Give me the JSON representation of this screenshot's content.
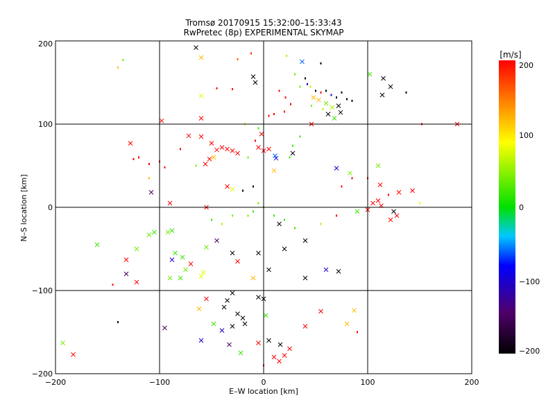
{
  "chart_data": {
    "type": "scatter",
    "title": "Tromsø 20170915 15:32:00–15:33:43",
    "subtitle": "RwPretec (8p) EXPERIMENTAL SKYMAP",
    "xlabel": "E–W location [km]",
    "ylabel": "N–S location [km]",
    "xlim": [
      -200,
      200
    ],
    "ylim": [
      -200,
      200
    ],
    "xticks": [
      "−200",
      "−100",
      "0",
      "100",
      "200"
    ],
    "yticks": [
      "−200",
      "−100",
      "0",
      "100",
      "200"
    ],
    "grid": true,
    "colorbar": {
      "label": "[m/s]",
      "range": [
        -200,
        200
      ],
      "ticks": [
        "200",
        "100",
        "0",
        "−100",
        "−200"
      ],
      "colormap": "black-purple-blue-cyan-green-yellow-red"
    },
    "points": [
      {
        "x": -65,
        "y": 192,
        "v": -200,
        "m": "x"
      },
      {
        "x": -60,
        "y": 180,
        "v": 120,
        "m": "x"
      },
      {
        "x": -140,
        "y": 168,
        "v": 120,
        "m": "d"
      },
      {
        "x": -135,
        "y": 177,
        "v": 40,
        "m": "d"
      },
      {
        "x": -25,
        "y": 178,
        "v": 160,
        "m": "d"
      },
      {
        "x": -12,
        "y": 185,
        "v": 180,
        "m": "d"
      },
      {
        "x": 22,
        "y": 182,
        "v": 60,
        "m": "d"
      },
      {
        "x": 37,
        "y": 175,
        "v": -60,
        "m": "x"
      },
      {
        "x": 55,
        "y": 173,
        "v": -200,
        "m": "d"
      },
      {
        "x": -10,
        "y": 157,
        "v": -200,
        "m": "x"
      },
      {
        "x": -8,
        "y": 150,
        "v": -200,
        "m": "x"
      },
      {
        "x": 102,
        "y": 160,
        "v": 20,
        "m": "x"
      },
      {
        "x": 115,
        "y": 155,
        "v": -200,
        "m": "x"
      },
      {
        "x": 122,
        "y": 145,
        "v": -200,
        "m": "x"
      },
      {
        "x": 114,
        "y": 135,
        "v": -200,
        "m": "x"
      },
      {
        "x": 137,
        "y": 138,
        "v": -200,
        "m": "d"
      },
      {
        "x": -60,
        "y": 134,
        "v": 80,
        "m": "x"
      },
      {
        "x": -60,
        "y": 107,
        "v": 200,
        "m": "x"
      },
      {
        "x": -98,
        "y": 104,
        "v": 200,
        "m": "x"
      },
      {
        "x": -128,
        "y": 77,
        "v": 200,
        "m": "x"
      },
      {
        "x": -45,
        "y": 143,
        "v": 200,
        "m": "d"
      },
      {
        "x": -30,
        "y": 142,
        "v": 200,
        "m": "d"
      },
      {
        "x": 15,
        "y": 140,
        "v": 200,
        "m": "d"
      },
      {
        "x": 21,
        "y": 132,
        "v": 200,
        "m": "d"
      },
      {
        "x": 26,
        "y": 124,
        "v": 200,
        "m": "d"
      },
      {
        "x": 20,
        "y": 115,
        "v": 200,
        "m": "d"
      },
      {
        "x": 10,
        "y": 112,
        "v": 200,
        "m": "d"
      },
      {
        "x": 5,
        "y": 110,
        "v": 200,
        "m": "d"
      },
      {
        "x": 40,
        "y": 155,
        "v": -200,
        "m": "d"
      },
      {
        "x": 42,
        "y": 148,
        "v": -100,
        "m": "d"
      },
      {
        "x": 45,
        "y": 145,
        "v": 60,
        "m": "d"
      },
      {
        "x": 50,
        "y": 140,
        "v": -200,
        "m": "d"
      },
      {
        "x": 55,
        "y": 138,
        "v": 200,
        "m": "d"
      },
      {
        "x": 60,
        "y": 140,
        "v": -200,
        "m": "d"
      },
      {
        "x": 65,
        "y": 135,
        "v": -100,
        "m": "d"
      },
      {
        "x": 70,
        "y": 132,
        "v": -200,
        "m": "d"
      },
      {
        "x": 75,
        "y": 138,
        "v": -200,
        "m": "d"
      },
      {
        "x": 80,
        "y": 130,
        "v": -200,
        "m": "d"
      },
      {
        "x": 85,
        "y": 128,
        "v": -200,
        "m": "d"
      },
      {
        "x": 48,
        "y": 132,
        "v": 120,
        "m": "x"
      },
      {
        "x": 53,
        "y": 129,
        "v": 120,
        "m": "x"
      },
      {
        "x": 60,
        "y": 125,
        "v": 40,
        "m": "x"
      },
      {
        "x": 66,
        "y": 120,
        "v": 60,
        "m": "x"
      },
      {
        "x": 72,
        "y": 122,
        "v": -200,
        "m": "x"
      },
      {
        "x": 74,
        "y": 114,
        "v": -200,
        "m": "x"
      },
      {
        "x": 62,
        "y": 112,
        "v": -200,
        "m": "x"
      },
      {
        "x": 57,
        "y": 118,
        "v": 60,
        "m": "d"
      },
      {
        "x": 46,
        "y": 122,
        "v": 40,
        "m": "d"
      },
      {
        "x": 35,
        "y": 145,
        "v": 40,
        "m": "d"
      },
      {
        "x": 30,
        "y": 160,
        "v": 40,
        "m": "d"
      },
      {
        "x": 68,
        "y": 107,
        "v": 20,
        "m": "x"
      },
      {
        "x": 46,
        "y": 100,
        "v": 200,
        "m": "x"
      },
      {
        "x": -18,
        "y": 100,
        "v": 60,
        "m": "d"
      },
      {
        "x": -5,
        "y": 95,
        "v": 20,
        "m": "d"
      },
      {
        "x": -60,
        "y": 85,
        "v": 200,
        "m": "x"
      },
      {
        "x": -72,
        "y": 86,
        "v": 200,
        "m": "x"
      },
      {
        "x": -50,
        "y": 77,
        "v": 200,
        "m": "x"
      },
      {
        "x": -45,
        "y": 69,
        "v": 200,
        "m": "x"
      },
      {
        "x": -40,
        "y": 72,
        "v": 200,
        "m": "x"
      },
      {
        "x": -35,
        "y": 70,
        "v": 200,
        "m": "x"
      },
      {
        "x": -30,
        "y": 68,
        "v": 200,
        "m": "x"
      },
      {
        "x": -25,
        "y": 65,
        "v": 200,
        "m": "x"
      },
      {
        "x": -48,
        "y": 60,
        "v": 120,
        "m": "x"
      },
      {
        "x": -52,
        "y": 58,
        "v": 200,
        "m": "x"
      },
      {
        "x": -56,
        "y": 52,
        "v": 200,
        "m": "x"
      },
      {
        "x": -5,
        "y": 72,
        "v": 200,
        "m": "x"
      },
      {
        "x": 0,
        "y": 68,
        "v": 200,
        "m": "x"
      },
      {
        "x": 5,
        "y": 70,
        "v": 200,
        "m": "x"
      },
      {
        "x": -2,
        "y": 88,
        "v": 200,
        "m": "x"
      },
      {
        "x": -8,
        "y": 80,
        "v": 200,
        "m": "d"
      },
      {
        "x": -100,
        "y": 55,
        "v": 200,
        "m": "d"
      },
      {
        "x": -110,
        "y": 52,
        "v": 200,
        "m": "d"
      },
      {
        "x": -120,
        "y": 60,
        "v": 200,
        "m": "d"
      },
      {
        "x": -125,
        "y": 58,
        "v": 200,
        "m": "d"
      },
      {
        "x": -95,
        "y": 48,
        "v": 200,
        "m": "d"
      },
      {
        "x": -80,
        "y": 70,
        "v": 200,
        "m": "d"
      },
      {
        "x": -65,
        "y": 50,
        "v": 40,
        "m": "d"
      },
      {
        "x": -15,
        "y": 60,
        "v": 40,
        "m": "d"
      },
      {
        "x": 25,
        "y": 60,
        "v": 20,
        "m": "d"
      },
      {
        "x": 28,
        "y": 74,
        "v": 20,
        "m": "d"
      },
      {
        "x": 35,
        "y": 85,
        "v": 20,
        "m": "d"
      },
      {
        "x": 12,
        "y": 59,
        "v": -100,
        "m": "x"
      },
      {
        "x": 11,
        "y": 62,
        "v": -60,
        "m": "x"
      },
      {
        "x": 28,
        "y": 65,
        "v": -200,
        "m": "x"
      },
      {
        "x": 10,
        "y": 44,
        "v": 120,
        "m": "x"
      },
      {
        "x": 70,
        "y": 47,
        "v": -100,
        "m": "x"
      },
      {
        "x": 83,
        "y": 41,
        "v": 40,
        "m": "x"
      },
      {
        "x": 110,
        "y": 50,
        "v": 40,
        "m": "x"
      },
      {
        "x": 100,
        "y": 35,
        "v": 200,
        "m": "d"
      },
      {
        "x": 85,
        "y": 35,
        "v": 200,
        "m": "d"
      },
      {
        "x": 75,
        "y": 25,
        "v": 200,
        "m": "d"
      },
      {
        "x": 120,
        "y": 15,
        "v": 200,
        "m": "d"
      },
      {
        "x": 112,
        "y": 27,
        "v": 200,
        "m": "x"
      },
      {
        "x": 130,
        "y": 18,
        "v": 200,
        "m": "x"
      },
      {
        "x": 143,
        "y": 20,
        "v": 200,
        "m": "x"
      },
      {
        "x": 105,
        "y": 5,
        "v": 200,
        "m": "x"
      },
      {
        "x": 110,
        "y": 8,
        "v": 200,
        "m": "x"
      },
      {
        "x": 113,
        "y": 2,
        "v": 200,
        "m": "x"
      },
      {
        "x": 125,
        "y": -5,
        "v": -200,
        "m": "x"
      },
      {
        "x": 128,
        "y": -10,
        "v": 200,
        "m": "x"
      },
      {
        "x": 122,
        "y": -15,
        "v": 200,
        "m": "x"
      },
      {
        "x": 100,
        "y": -3,
        "v": 200,
        "m": "x"
      },
      {
        "x": 90,
        "y": -5,
        "v": 20,
        "m": "x"
      },
      {
        "x": 150,
        "y": 5,
        "v": 80,
        "m": "d"
      },
      {
        "x": 152,
        "y": 100,
        "v": 200,
        "m": "d"
      },
      {
        "x": 186,
        "y": 100,
        "v": 200,
        "m": "x"
      },
      {
        "x": -110,
        "y": 35,
        "v": 120,
        "m": "d"
      },
      {
        "x": -108,
        "y": 18,
        "v": -150,
        "m": "x"
      },
      {
        "x": -90,
        "y": 5,
        "v": 200,
        "m": "x"
      },
      {
        "x": -55,
        "y": 0,
        "v": 200,
        "m": "x"
      },
      {
        "x": -35,
        "y": 25,
        "v": 200,
        "m": "x"
      },
      {
        "x": -30,
        "y": 22,
        "v": 80,
        "m": "x"
      },
      {
        "x": -20,
        "y": 20,
        "v": -200,
        "m": "d"
      },
      {
        "x": -10,
        "y": 25,
        "v": -200,
        "m": "d"
      },
      {
        "x": -5,
        "y": 5,
        "v": 40,
        "m": "d"
      },
      {
        "x": 0,
        "y": 0,
        "v": 40,
        "m": "d"
      },
      {
        "x": -10,
        "y": -5,
        "v": 20,
        "m": "d"
      },
      {
        "x": -15,
        "y": -10,
        "v": 40,
        "m": "d"
      },
      {
        "x": -30,
        "y": -10,
        "v": 40,
        "m": "d"
      },
      {
        "x": -40,
        "y": -20,
        "v": 60,
        "m": "d"
      },
      {
        "x": -50,
        "y": -15,
        "v": 20,
        "m": "d"
      },
      {
        "x": 10,
        "y": -10,
        "v": 20,
        "m": "d"
      },
      {
        "x": 20,
        "y": -15,
        "v": 20,
        "m": "d"
      },
      {
        "x": 30,
        "y": -25,
        "v": 20,
        "m": "d"
      },
      {
        "x": 15,
        "y": -20,
        "v": -200,
        "m": "x"
      },
      {
        "x": 40,
        "y": -40,
        "v": -200,
        "m": "x"
      },
      {
        "x": 55,
        "y": -20,
        "v": 60,
        "m": "d"
      },
      {
        "x": 70,
        "y": -10,
        "v": 200,
        "m": "d"
      },
      {
        "x": -105,
        "y": -30,
        "v": 20,
        "m": "x"
      },
      {
        "x": -110,
        "y": -33,
        "v": 40,
        "m": "x"
      },
      {
        "x": -92,
        "y": -30,
        "v": 40,
        "m": "x"
      },
      {
        "x": -88,
        "y": -28,
        "v": 20,
        "m": "x"
      },
      {
        "x": -160,
        "y": -45,
        "v": 20,
        "m": "x"
      },
      {
        "x": -122,
        "y": -50,
        "v": 40,
        "m": "x"
      },
      {
        "x": -132,
        "y": -63,
        "v": 200,
        "m": "x"
      },
      {
        "x": -132,
        "y": -80,
        "v": -150,
        "m": "x"
      },
      {
        "x": -122,
        "y": -90,
        "v": 200,
        "m": "x"
      },
      {
        "x": -145,
        "y": -93,
        "v": 200,
        "m": "d"
      },
      {
        "x": -85,
        "y": -55,
        "v": 20,
        "m": "x"
      },
      {
        "x": -78,
        "y": -60,
        "v": 20,
        "m": "x"
      },
      {
        "x": -88,
        "y": -63,
        "v": -100,
        "m": "x"
      },
      {
        "x": -75,
        "y": -75,
        "v": 40,
        "m": "x"
      },
      {
        "x": -70,
        "y": -68,
        "v": 200,
        "m": "x"
      },
      {
        "x": -80,
        "y": -85,
        "v": 20,
        "m": "x"
      },
      {
        "x": -90,
        "y": -85,
        "v": 40,
        "m": "x"
      },
      {
        "x": -60,
        "y": -83,
        "v": 80,
        "m": "x"
      },
      {
        "x": -58,
        "y": -78,
        "v": 80,
        "m": "x"
      },
      {
        "x": -55,
        "y": -48,
        "v": 40,
        "m": "x"
      },
      {
        "x": -45,
        "y": -40,
        "v": -150,
        "m": "x"
      },
      {
        "x": -30,
        "y": -55,
        "v": -200,
        "m": "x"
      },
      {
        "x": -25,
        "y": -65,
        "v": 200,
        "m": "x"
      },
      {
        "x": -10,
        "y": -85,
        "v": 120,
        "m": "x"
      },
      {
        "x": -5,
        "y": -55,
        "v": -200,
        "m": "x"
      },
      {
        "x": 5,
        "y": -75,
        "v": -200,
        "m": "x"
      },
      {
        "x": 20,
        "y": -50,
        "v": -200,
        "m": "x"
      },
      {
        "x": 40,
        "y": -85,
        "v": -200,
        "m": "x"
      },
      {
        "x": 60,
        "y": -75,
        "v": -100,
        "m": "x"
      },
      {
        "x": 72,
        "y": -77,
        "v": -200,
        "m": "x"
      },
      {
        "x": -30,
        "y": -103,
        "v": -200,
        "m": "x"
      },
      {
        "x": -35,
        "y": -112,
        "v": -200,
        "m": "x"
      },
      {
        "x": -38,
        "y": -120,
        "v": -200,
        "m": "x"
      },
      {
        "x": -25,
        "y": -128,
        "v": -200,
        "m": "x"
      },
      {
        "x": -20,
        "y": -133,
        "v": -200,
        "m": "x"
      },
      {
        "x": -18,
        "y": -140,
        "v": -200,
        "m": "x"
      },
      {
        "x": -30,
        "y": -143,
        "v": -200,
        "m": "x"
      },
      {
        "x": -40,
        "y": -148,
        "v": -100,
        "m": "x"
      },
      {
        "x": -33,
        "y": -165,
        "v": -150,
        "m": "x"
      },
      {
        "x": -22,
        "y": -175,
        "v": 20,
        "m": "x"
      },
      {
        "x": -60,
        "y": -160,
        "v": -100,
        "m": "x"
      },
      {
        "x": -48,
        "y": -140,
        "v": 20,
        "m": "x"
      },
      {
        "x": -62,
        "y": -122,
        "v": 120,
        "m": "x"
      },
      {
        "x": -55,
        "y": -110,
        "v": 200,
        "m": "x"
      },
      {
        "x": -95,
        "y": -145,
        "v": -150,
        "m": "x"
      },
      {
        "x": -140,
        "y": -138,
        "v": -200,
        "m": "d"
      },
      {
        "x": -193,
        "y": -163,
        "v": 40,
        "m": "x"
      },
      {
        "x": -183,
        "y": -177,
        "v": 200,
        "m": "x"
      },
      {
        "x": -5,
        "y": -108,
        "v": -200,
        "m": "x"
      },
      {
        "x": 0,
        "y": -110,
        "v": -200,
        "m": "x"
      },
      {
        "x": 2,
        "y": -130,
        "v": 20,
        "m": "x"
      },
      {
        "x": 5,
        "y": -160,
        "v": -200,
        "m": "x"
      },
      {
        "x": -5,
        "y": -163,
        "v": 200,
        "m": "x"
      },
      {
        "x": 10,
        "y": -180,
        "v": 200,
        "m": "x"
      },
      {
        "x": 15,
        "y": -185,
        "v": 200,
        "m": "x"
      },
      {
        "x": 20,
        "y": -178,
        "v": 200,
        "m": "x"
      },
      {
        "x": 25,
        "y": -170,
        "v": 200,
        "m": "x"
      },
      {
        "x": 16,
        "y": -165,
        "v": -200,
        "m": "x"
      },
      {
        "x": 40,
        "y": -143,
        "v": 200,
        "m": "x"
      },
      {
        "x": 55,
        "y": -125,
        "v": 200,
        "m": "x"
      },
      {
        "x": 80,
        "y": -140,
        "v": 120,
        "m": "x"
      },
      {
        "x": 87,
        "y": -124,
        "v": 120,
        "m": "x"
      },
      {
        "x": 90,
        "y": -150,
        "v": 200,
        "m": "d"
      },
      {
        "x": 0,
        "y": -190,
        "v": 200,
        "m": "d"
      }
    ]
  }
}
